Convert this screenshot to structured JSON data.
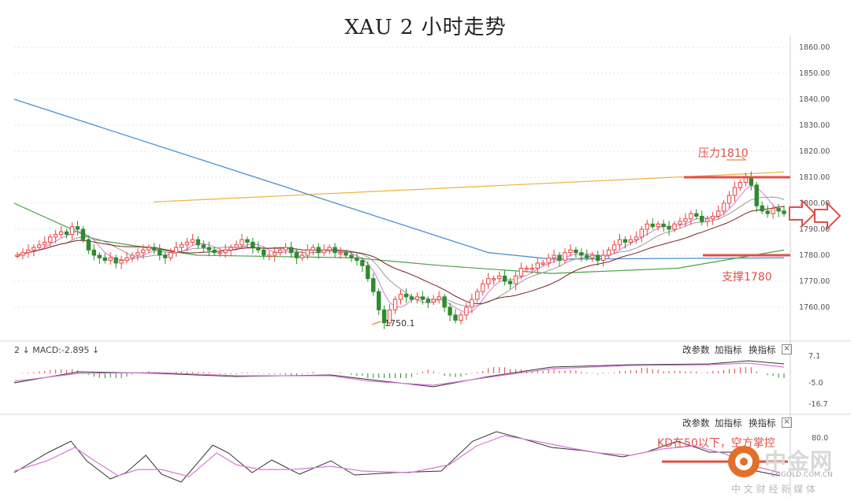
{
  "title": "XAU 2 小时走势",
  "price_axis_ticks": [
    "1860.00",
    "1850.00",
    "1840.00",
    "1830.00",
    "1820.00",
    "1810.00",
    "1800.00",
    "1790.00",
    "1780.00",
    "1770.00",
    "1760.00"
  ],
  "macd_panel": {
    "header": "2 ↓ MACD:-2.895 ↓",
    "buttons": [
      "改参数",
      "加指标",
      "换指标"
    ],
    "close": "×",
    "ticks": [
      "7.1",
      "-5.0",
      "-16.7"
    ]
  },
  "kd_panel": {
    "buttons": [
      "改参数",
      "加指标",
      "换指标"
    ],
    "close": "×",
    "ticks": [
      "80.0"
    ]
  },
  "annotations": {
    "resistance": "压力1810",
    "support": "支撑1780",
    "low": "1750.1",
    "kd": "KD在50以下，空方掌控"
  },
  "logo": {
    "name": "中金网",
    "site": "CNGOLD.COM.CN",
    "sub": "中 文 财 经 新 媒 体"
  },
  "colors": {
    "up": "#e8433f",
    "down": "#2e8b2e",
    "ma_orange": "#f0b64a",
    "ma_blue": "#4a90d0",
    "ma_green": "#4aa04a",
    "ma_dark": "#7a2020",
    "ma_pink": "#d878d8",
    "ma_grey": "#9a9a9a",
    "annotation": "#e0504a"
  },
  "chart_data": {
    "type": "candlestick",
    "title": "XAU 2 小时走势",
    "ylim": [
      1750,
      1865
    ],
    "y_ticks": [
      1760,
      1770,
      1780,
      1790,
      1800,
      1810,
      1820,
      1830,
      1840,
      1850,
      1860
    ],
    "key_levels": {
      "resistance": 1810,
      "support": 1780,
      "low": 1750.1
    },
    "close": [
      1780,
      1781,
      1782,
      1783,
      1784,
      1785,
      1787,
      1788,
      1789,
      1788,
      1791,
      1790,
      1786,
      1782,
      1780,
      1779,
      1778,
      1779,
      1777,
      1778,
      1779,
      1780,
      1781,
      1782,
      1783,
      1782,
      1780,
      1779,
      1781,
      1783,
      1784,
      1785,
      1786,
      1784,
      1783,
      1782,
      1781,
      1781,
      1782,
      1783,
      1784,
      1786,
      1785,
      1783,
      1782,
      1780,
      1780,
      1781,
      1782,
      1783,
      1781,
      1779,
      1780,
      1782,
      1783,
      1781,
      1782,
      1783,
      1781,
      1781,
      1780,
      1779,
      1778,
      1776,
      1771,
      1766,
      1759,
      1754,
      1759,
      1763,
      1765,
      1764,
      1763,
      1764,
      1763,
      1762,
      1763,
      1764,
      1760,
      1757,
      1755,
      1757,
      1760,
      1763,
      1766,
      1769,
      1771,
      1771,
      1772,
      1770,
      1769,
      1772,
      1775,
      1775,
      1775,
      1777,
      1777,
      1779,
      1780,
      1778,
      1781,
      1782,
      1781,
      1780,
      1779,
      1780,
      1778,
      1780,
      1782,
      1784,
      1786,
      1785,
      1786,
      1787,
      1790,
      1792,
      1791,
      1792,
      1791,
      1790,
      1792,
      1793,
      1794,
      1796,
      1795,
      1793,
      1794,
      1795,
      1797,
      1800,
      1803,
      1806,
      1808,
      1810,
      1807,
      1799,
      1797,
      1796,
      1798,
      1797,
      1796
    ],
    "ma_series": [
      {
        "values": [
          1800.5,
          1812.0
        ]
      },
      {
        "values": [
          1795.5,
          1779.0
        ]
      },
      {
        "values": [
          1793.0,
          1782.0
        ]
      }
    ],
    "macd": {
      "value": -2.895,
      "ylim": [
        -16.7,
        7.1
      ]
    },
    "kd": {
      "upper_tick": 80.0
    }
  }
}
